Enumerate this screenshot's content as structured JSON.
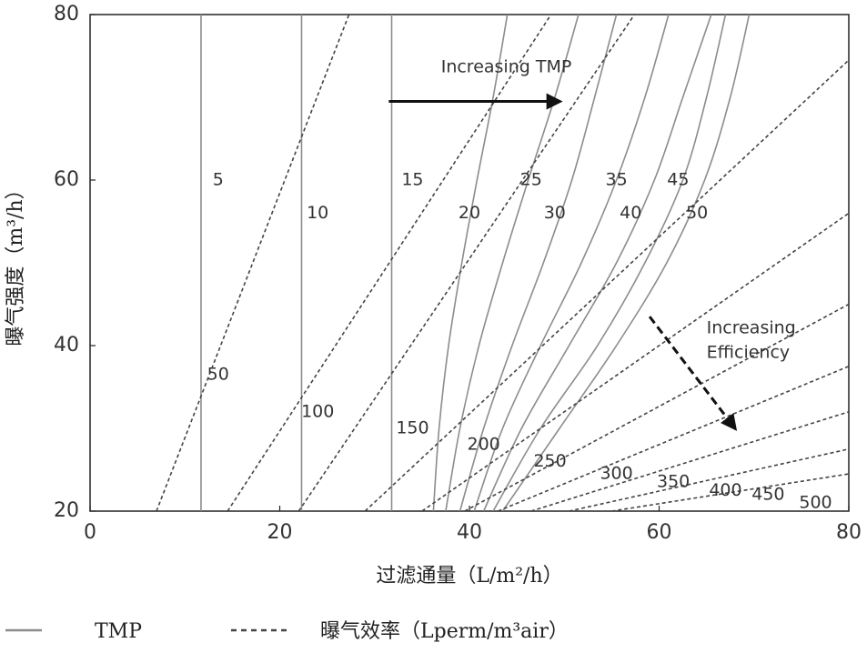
{
  "chart_data": {
    "type": "line",
    "xlabel": "过滤通量（L/m²/h）",
    "ylabel": "曝气强度（m³/h）",
    "xlim": [
      0,
      80
    ],
    "ylim": [
      20,
      80
    ],
    "xticks": [
      0,
      20,
      40,
      60,
      80
    ],
    "yticks": [
      20,
      40,
      60,
      80
    ],
    "grid": false,
    "legend_position": "bottom",
    "legend": {
      "tmp_label": "TMP",
      "eff_label": "曝气效率（Lperm/m³air）"
    },
    "colors": {
      "tmp": "#8c8c8c",
      "efficiency": "#444444",
      "arrow": "#111111"
    },
    "tmp_series": [
      {
        "name": "5",
        "label_at": [
          13.5,
          60
        ],
        "points": [
          [
            11.7,
            20
          ],
          [
            11.7,
            80
          ]
        ]
      },
      {
        "name": "10",
        "label_at": [
          24,
          56
        ],
        "points": [
          [
            22.3,
            20
          ],
          [
            22.3,
            80
          ]
        ]
      },
      {
        "name": "15",
        "label_at": [
          34,
          60
        ],
        "points": [
          [
            31.8,
            20
          ],
          [
            31.8,
            80
          ]
        ]
      },
      {
        "name": "20",
        "label_at": [
          40,
          56
        ],
        "points": [
          [
            36.2,
            20
          ],
          [
            36.8,
            30
          ],
          [
            37.8,
            40
          ],
          [
            39.2,
            50
          ],
          [
            40.8,
            60
          ],
          [
            42.5,
            70
          ],
          [
            44.0,
            80
          ]
        ]
      },
      {
        "name": "25",
        "label_at": [
          46.5,
          60
        ],
        "points": [
          [
            37.5,
            20
          ],
          [
            39.0,
            30
          ],
          [
            41.0,
            40
          ],
          [
            43.5,
            50
          ],
          [
            46.2,
            60
          ],
          [
            49.0,
            70
          ],
          [
            51.5,
            80
          ]
        ]
      },
      {
        "name": "30",
        "label_at": [
          49,
          56
        ],
        "points": [
          [
            39.0,
            20
          ],
          [
            41.5,
            30
          ],
          [
            44.5,
            40
          ],
          [
            47.8,
            50
          ],
          [
            50.8,
            60
          ],
          [
            53.2,
            70
          ],
          [
            55.5,
            80
          ]
        ]
      },
      {
        "name": "35",
        "label_at": [
          55.5,
          60
        ],
        "points": [
          [
            40.5,
            20
          ],
          [
            43.5,
            30
          ],
          [
            47.5,
            40
          ],
          [
            51.8,
            50
          ],
          [
            55.5,
            60
          ],
          [
            58.5,
            70
          ],
          [
            61.0,
            80
          ]
        ]
      },
      {
        "name": "40",
        "label_at": [
          57,
          56
        ],
        "points": [
          [
            41.5,
            20
          ],
          [
            45.5,
            30
          ],
          [
            50.5,
            40
          ],
          [
            55.5,
            50
          ],
          [
            59.5,
            60
          ],
          [
            62.5,
            70
          ],
          [
            65.5,
            80
          ]
        ]
      },
      {
        "name": "45",
        "label_at": [
          62,
          60
        ],
        "points": [
          [
            42.5,
            20
          ],
          [
            47.5,
            30
          ],
          [
            53.5,
            40
          ],
          [
            58.5,
            50
          ],
          [
            62.5,
            60
          ],
          [
            65.0,
            70
          ],
          [
            67.0,
            80
          ]
        ]
      },
      {
        "name": "50",
        "label_at": [
          64,
          56
        ],
        "points": [
          [
            43.5,
            20
          ],
          [
            49.5,
            30
          ],
          [
            55.5,
            40
          ],
          [
            60.8,
            50
          ],
          [
            64.8,
            60
          ],
          [
            67.5,
            70
          ],
          [
            69.5,
            80
          ]
        ]
      }
    ],
    "efficiency_series": [
      {
        "name": "50",
        "label_at": [
          13.5,
          36.5
        ],
        "points": [
          [
            7,
            20
          ],
          [
            27.3,
            80
          ]
        ]
      },
      {
        "name": "100",
        "label_at": [
          24,
          32
        ],
        "points": [
          [
            14.5,
            20
          ],
          [
            48.6,
            80
          ]
        ]
      },
      {
        "name": "150",
        "label_at": [
          34,
          30
        ],
        "points": [
          [
            22,
            20
          ],
          [
            57.4,
            80
          ]
        ]
      },
      {
        "name": "200",
        "label_at": [
          41.5,
          28
        ],
        "points": [
          [
            29,
            20
          ],
          [
            80,
            74.5
          ]
        ]
      },
      {
        "name": "250",
        "label_at": [
          48.5,
          26
        ],
        "points": [
          [
            35,
            20
          ],
          [
            80,
            56
          ]
        ]
      },
      {
        "name": "300",
        "label_at": [
          55.5,
          24.5
        ],
        "points": [
          [
            39.5,
            20
          ],
          [
            80,
            45
          ]
        ]
      },
      {
        "name": "350",
        "label_at": [
          61.5,
          23.5
        ],
        "points": [
          [
            43,
            20
          ],
          [
            80,
            37.5
          ]
        ]
      },
      {
        "name": "400",
        "label_at": [
          67,
          22.5
        ],
        "points": [
          [
            46.5,
            20
          ],
          [
            80,
            32
          ]
        ]
      },
      {
        "name": "450",
        "label_at": [
          71.5,
          22
        ],
        "points": [
          [
            50.5,
            20
          ],
          [
            80,
            27.5
          ]
        ]
      },
      {
        "name": "500",
        "label_at": [
          76.5,
          21
        ],
        "points": [
          [
            55,
            20
          ],
          [
            80,
            24.5
          ]
        ]
      }
    ],
    "annotations": [
      {
        "text": "Increasing TMP",
        "x": 37,
        "y": 73
      },
      {
        "text": "Increasing",
        "x": 65,
        "y": 41.5
      },
      {
        "text": "Efficiency",
        "x": 65,
        "y": 38.5
      }
    ],
    "arrows": [
      {
        "name": "increasing-tmp-arrow",
        "from": [
          31.5,
          69.5
        ],
        "to": [
          49.5,
          69.5
        ]
      },
      {
        "name": "increasing-efficiency-arrow",
        "from": [
          59,
          43.5
        ],
        "to": [
          68,
          30
        ]
      }
    ]
  }
}
